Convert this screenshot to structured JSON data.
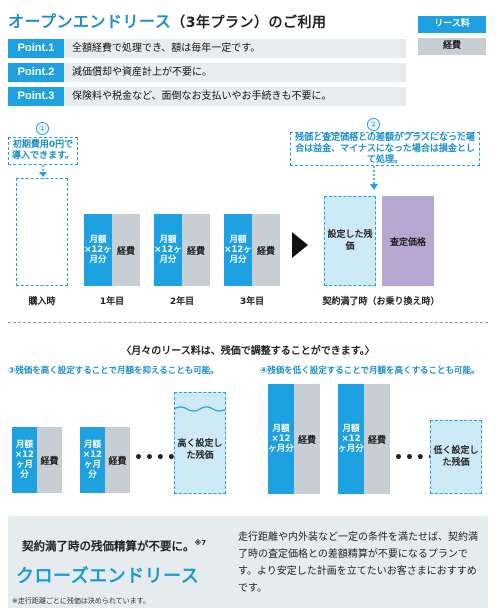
{
  "header": {
    "title_main": "オープンエンドリース",
    "title_sub": "（3年プラン）のご利用",
    "legend_lease": "リース料",
    "legend_expense": "経費"
  },
  "points": [
    {
      "tag": "Point.1",
      "text": "全額経費で処理でき、額は毎年一定です。"
    },
    {
      "tag": "Point.2",
      "text": "減価償却や資産計上が不要に。"
    },
    {
      "tag": "Point.3",
      "text": "保険料や税金など、面倒なお支払いやお手続きも不要に。"
    }
  ],
  "diagram": {
    "note1_num": "①",
    "note1_text": "初期費用0円で導入できます。",
    "note2_num": "②",
    "note2_text": "残価と査定価格との差額がプラスになった場合は益金、マイナスになった場合は損金として処理。",
    "bar_lease_label": "月額×12ヶ月分",
    "bar_expense_label": "経費",
    "periods": [
      "購入時",
      "1年目",
      "2年目",
      "3年目",
      "契約満了時（お乗り換え時）"
    ],
    "residual_label": "設定した残価",
    "assessed_label": "査定価格",
    "arrow_icon": "play-arrow-icon"
  },
  "adjust": {
    "caption": "〈月々のリース料は、残価で調整することができます。〉",
    "case3_title": "③残価を高く設定することで月額を抑えることも可能。",
    "case4_title": "④残価を低く設定することで月額を高くすることも可能。",
    "high_residual": "高く設定した残価",
    "low_residual": "低く設定した残価",
    "dots": "•••••"
  },
  "closed": {
    "headline": "契約満了時の残価精算が不要に。",
    "note_mark": "※7",
    "name": "クローズエンドリース",
    "description": "走行距離や内外装など一定の条件を満たせば、契約満了時の査定価格との差額精算が不要になるプランです。より安定した計画を立てたいお客さまにおすすめです。",
    "footnote": "※走行距離ごとに残価は決められています。"
  },
  "colors": {
    "accent": "#1ea1e0",
    "expense": "#c8cfd4",
    "assessed": "#b7a6d2",
    "bg_gray": "#e6ebee"
  }
}
